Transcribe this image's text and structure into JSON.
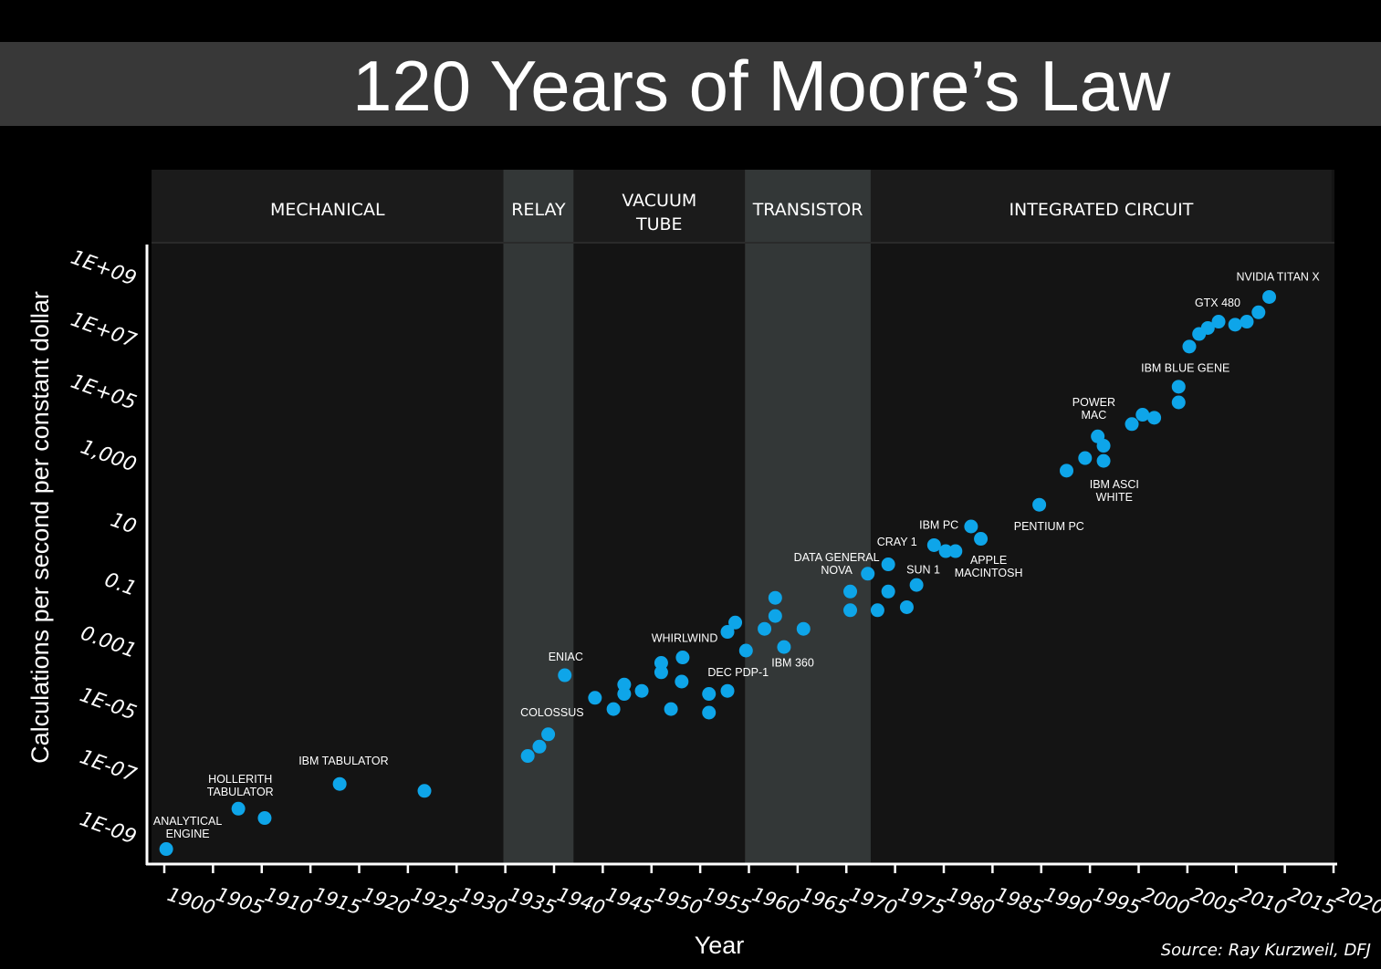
{
  "chart_data": {
    "type": "scatter",
    "title": "120 Years of Moore’s Law",
    "xlabel": "Year",
    "ylabel": "Calculations per second per constant dollar",
    "source": "Source: Ray Kurzweil, DFJ",
    "y_scale": "log",
    "xlim": [
      1900,
      2020
    ],
    "ylim": [
      1e-09,
      1000000000.0
    ],
    "grid": false,
    "point_color": "#0ea5e9",
    "x_ticks": [
      "1900",
      "1905",
      "1910",
      "1915",
      "1920",
      "1925",
      "1930",
      "1935",
      "1940",
      "1945",
      "1950",
      "1955",
      "1960",
      "1965",
      "1970",
      "1975",
      "1980",
      "1985",
      "1990",
      "1995",
      "2000",
      "2005",
      "2010",
      "2015",
      "2020"
    ],
    "y_ticks": [
      {
        "label": "1E+09",
        "value": 1000000000.0
      },
      {
        "label": "1E+07",
        "value": 10000000.0
      },
      {
        "label": "1E+05",
        "value": 100000.0
      },
      {
        "label": "1,000",
        "value": 1000
      },
      {
        "label": "10",
        "value": 10
      },
      {
        "label": "0.1",
        "value": 0.1
      },
      {
        "label": "0.001",
        "value": 0.001
      },
      {
        "label": "1E-05",
        "value": 1e-05
      },
      {
        "label": "1E-07",
        "value": 1e-07
      },
      {
        "label": "1E-09",
        "value": 1e-09
      }
    ],
    "eras": [
      {
        "label": "MECHANICAL",
        "start": 1898.7,
        "end": 1934.8,
        "shaded": false
      },
      {
        "label": "RELAY",
        "start": 1934.8,
        "end": 1942,
        "shaded": true
      },
      {
        "label": "VACUUM\nTUBE",
        "start": 1942,
        "end": 1959.6,
        "shaded": false
      },
      {
        "label": "TRANSISTOR",
        "start": 1959.6,
        "end": 1972.5,
        "shaded": true
      },
      {
        "label": "INTEGRATED CIRCUIT",
        "start": 1972.5,
        "end": 2019.8,
        "shaded": false
      }
    ],
    "points": [
      [
        1900.2,
        4e-10
      ],
      [
        1907.6,
        8e-09
      ],
      [
        1910.3,
        4e-09
      ],
      [
        1918,
        5e-08
      ],
      [
        1926.7,
        3e-08
      ],
      [
        1937.3,
        4e-07
      ],
      [
        1938.5,
        8e-07
      ],
      [
        1939.4,
        2e-06
      ],
      [
        1941.1,
        0.00016
      ],
      [
        1944.2,
        3e-05
      ],
      [
        1946.1,
        1.3e-05
      ],
      [
        1947.2,
        4e-05
      ],
      [
        1947.2,
        8e-05
      ],
      [
        1949,
        5e-05
      ],
      [
        1951,
        0.0002
      ],
      [
        1951,
        0.0004
      ],
      [
        1952,
        1.3e-05
      ],
      [
        1953.1,
        0.0001
      ],
      [
        1953.2,
        0.0006
      ],
      [
        1955.9,
        4e-05
      ],
      [
        1955.9,
        1e-05
      ],
      [
        1957.8,
        5e-05
      ],
      [
        1957.8,
        0.004
      ],
      [
        1958.6,
        0.008
      ],
      [
        1959.7,
        0.001
      ],
      [
        1961.6,
        0.005
      ],
      [
        1962.7,
        0.05
      ],
      [
        1962.7,
        0.013
      ],
      [
        1963.6,
        0.0013
      ],
      [
        1965.6,
        0.005
      ],
      [
        1970.4,
        0.08
      ],
      [
        1970.4,
        0.02
      ],
      [
        1972.2,
        0.3
      ],
      [
        1973.2,
        0.02
      ],
      [
        1974.3,
        0.6
      ],
      [
        1974.3,
        0.08
      ],
      [
        1976.2,
        0.025
      ],
      [
        1977.2,
        0.13
      ],
      [
        1979,
        2.5
      ],
      [
        1980.2,
        1.6
      ],
      [
        1981.2,
        1.6
      ],
      [
        1982.8,
        10
      ],
      [
        1983.8,
        4
      ],
      [
        1989.8,
        50
      ],
      [
        1992.6,
        630
      ],
      [
        1994.5,
        1600
      ],
      [
        1995.8,
        8000
      ],
      [
        1996.4,
        4000
      ],
      [
        1996.4,
        1300
      ],
      [
        1999.3,
        20000
      ],
      [
        2000.4,
        40000
      ],
      [
        2001.6,
        32000
      ],
      [
        2004.1,
        100000.0
      ],
      [
        2004.1,
        320000.0
      ],
      [
        2005.2,
        6300000.0
      ],
      [
        2006.2,
        16000000.0
      ],
      [
        2007.1,
        25000000.0
      ],
      [
        2008.2,
        40000000.0
      ],
      [
        2009.9,
        32000000.0
      ],
      [
        2011.1,
        40000000.0
      ],
      [
        2012.3,
        80000000.0
      ],
      [
        2013.4,
        250000000.0
      ]
    ],
    "annotations": [
      {
        "text": "ANALYTICAL\nENGINE",
        "x": 1902.4,
        "y": 2e-09
      },
      {
        "text": "HOLLERITH\nTABULATOR",
        "x": 1907.8,
        "y": 4.5e-08
      },
      {
        "text": "IBM TABULATOR",
        "x": 1918.4,
        "y": 2.8e-07
      },
      {
        "text": "COLOSSUS",
        "x": 1939.8,
        "y": 1e-05
      },
      {
        "text": "ENIAC",
        "x": 1941.2,
        "y": 0.00063
      },
      {
        "text": "WHIRLWIND",
        "x": 1953.4,
        "y": 0.0025
      },
      {
        "text": "DEC PDP-1",
        "x": 1958.9,
        "y": 0.0002
      },
      {
        "text": "IBM 360",
        "x": 1964.5,
        "y": 0.0004
      },
      {
        "text": "DATA GENERAL\nNOVA",
        "x": 1969,
        "y": 0.63
      },
      {
        "text": "CRAY 1",
        "x": 1975.2,
        "y": 3.2
      },
      {
        "text": "SUN 1",
        "x": 1977.9,
        "y": 0.4
      },
      {
        "text": "IBM PC",
        "x": 1979.5,
        "y": 11
      },
      {
        "text": "APPLE\nMACINTOSH",
        "x": 1984.6,
        "y": 0.5
      },
      {
        "text": "PENTIUM PC",
        "x": 1990.8,
        "y": 10
      },
      {
        "text": "IBM ASCI\nWHITE",
        "x": 1997.5,
        "y": 140
      },
      {
        "text": "POWER\nMAC",
        "x": 1995.4,
        "y": 63000
      },
      {
        "text": "IBM BLUE GENE",
        "x": 2004.8,
        "y": 1260000.0
      },
      {
        "text": "GTX 480",
        "x": 2008.1,
        "y": 160000000.0
      },
      {
        "text": "NVIDIA TITAN X",
        "x": 2014.3,
        "y": 1100000000.0
      }
    ]
  }
}
